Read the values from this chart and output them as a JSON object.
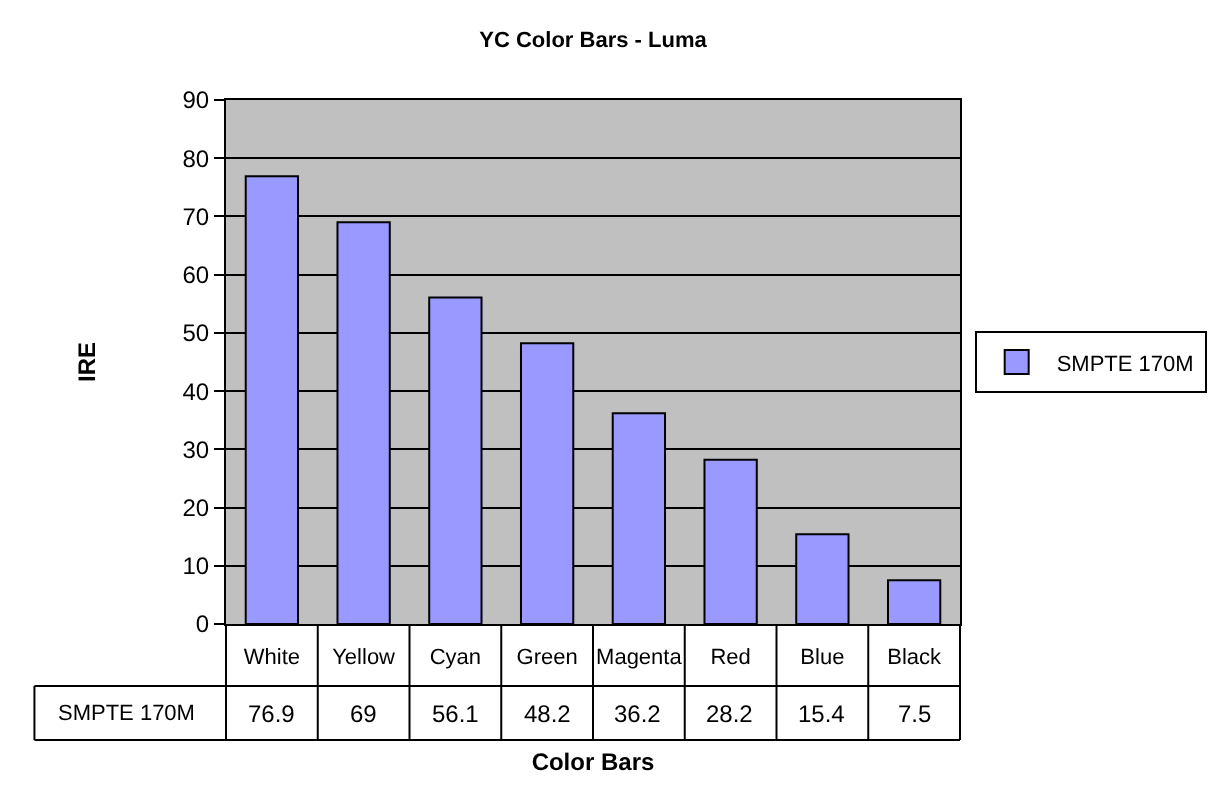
{
  "chart_data": {
    "type": "bar",
    "title": "YC Color Bars - Luma",
    "xlabel": "Color Bars",
    "ylabel": "IRE",
    "categories": [
      "White",
      "Yellow",
      "Cyan",
      "Green",
      "Magenta",
      "Red",
      "Blue",
      "Black"
    ],
    "series": [
      {
        "name": "SMPTE 170M",
        "color": "#9999ff",
        "values": [
          76.9,
          69,
          56.1,
          48.2,
          36.2,
          28.2,
          15.4,
          7.5
        ]
      }
    ],
    "ylim": [
      0,
      90
    ],
    "yticks": [
      0,
      10,
      20,
      30,
      40,
      50,
      60,
      70,
      80,
      90
    ],
    "grid": "y",
    "legend": "right",
    "data_labels": true
  }
}
